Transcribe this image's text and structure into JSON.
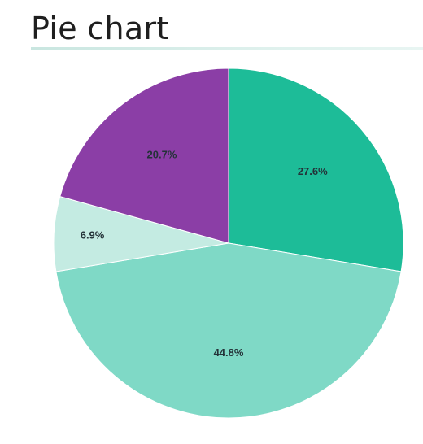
{
  "chart_data": {
    "type": "pie",
    "title": "Pie chart",
    "slices": [
      {
        "label": "27.6%",
        "value": 27.6,
        "color": "#1dbc98"
      },
      {
        "label": "44.8%",
        "value": 44.8,
        "color": "#7fd9c6"
      },
      {
        "label": "6.9%",
        "value": 6.9,
        "color": "#c4ebe2"
      },
      {
        "label": "20.7%",
        "value": 20.7,
        "color": "#8b3ea6"
      }
    ],
    "start_angle_deg": 0,
    "direction": "clockwise",
    "legend": "none"
  }
}
